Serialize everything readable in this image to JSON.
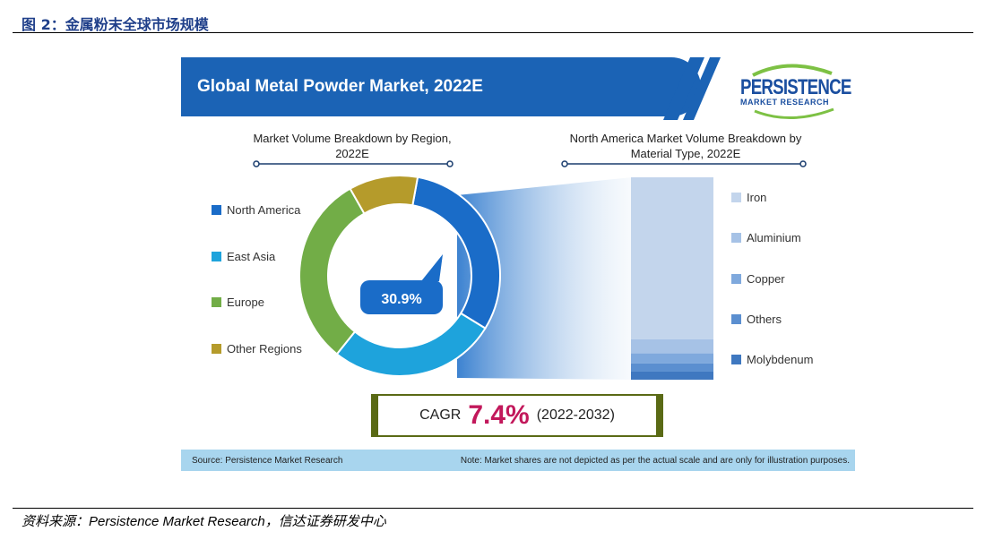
{
  "figure": {
    "title": "图 2：金属粉末全球市场规模",
    "footer_source": "资料来源：Persistence Market Research，信达证券研发中心"
  },
  "infographic": {
    "banner_title": "Global Metal Powder Market, 2022E",
    "logo_main": "PERSISTENCE",
    "logo_sub": "MARKET RESEARCH",
    "cagr_label": "CAGR",
    "cagr_value": "7.4%",
    "cagr_period": "(2022-2032)",
    "source": "Source: Persistence Market Research",
    "note": "Note: Market shares are not depicted as per the actual scale and are only for illustration purposes."
  },
  "chart_data": [
    {
      "type": "pie",
      "title": "Market Volume Breakdown by Region, 2022E",
      "categories": [
        "North America",
        "East Asia",
        "Europe",
        "Other Regions"
      ],
      "values": [
        30.9,
        27,
        31,
        11.1
      ],
      "colors": [
        "#1a6cc8",
        "#1ea3dc",
        "#72ad47",
        "#b59b2b"
      ],
      "highlight_label": "30.9%",
      "legend": "left"
    },
    {
      "type": "bar",
      "title": "North America Market Volume Breakdown by Material Type, 2022E",
      "categories": [
        "Iron",
        "Aluminium",
        "Copper",
        "Others",
        "Molybdenum"
      ],
      "values": [
        80,
        7,
        5,
        4,
        4
      ],
      "colors": [
        "#c3d5ec",
        "#a6c2e6",
        "#7fa9dd",
        "#5b8fd0",
        "#3f78c0"
      ],
      "stacked": true,
      "legend": "right"
    }
  ]
}
